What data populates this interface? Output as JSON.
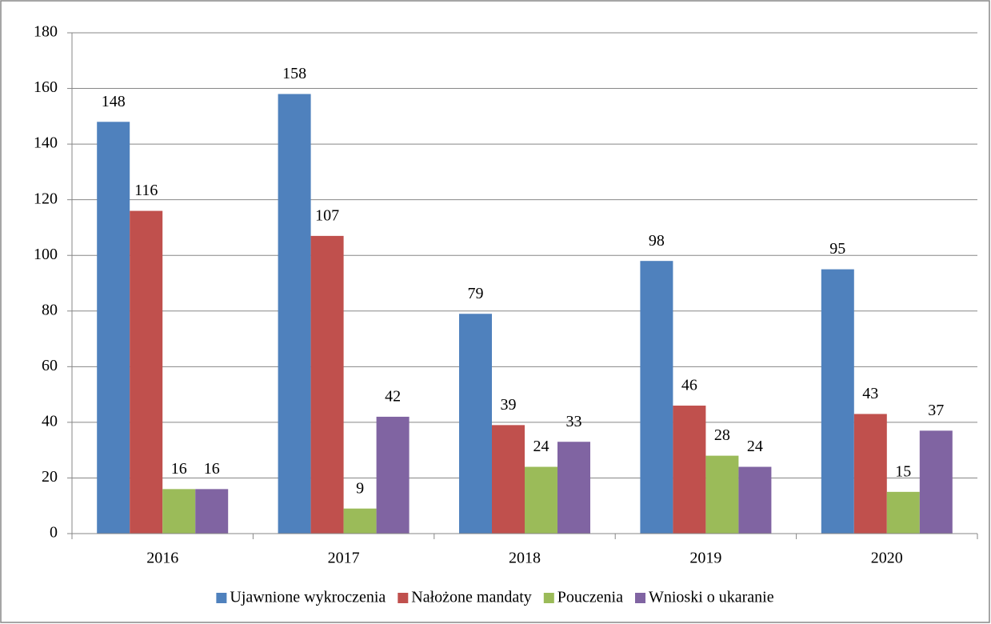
{
  "chart_data": {
    "type": "bar",
    "categories": [
      "2016",
      "2017",
      "2018",
      "2019",
      "2020"
    ],
    "series": [
      {
        "name": "Ujawnione wykroczenia",
        "color": "#4f81bd",
        "values": [
          148,
          158,
          79,
          98,
          95
        ]
      },
      {
        "name": "Nałożone mandaty",
        "color": "#c0504d",
        "values": [
          116,
          107,
          39,
          46,
          43
        ]
      },
      {
        "name": "Pouczenia",
        "color": "#9bbb59",
        "values": [
          16,
          9,
          24,
          28,
          15
        ]
      },
      {
        "name": "Wnioski o ukaranie",
        "color": "#8064a2",
        "values": [
          16,
          42,
          33,
          24,
          37
        ]
      }
    ],
    "ylim": [
      0,
      180
    ],
    "yticks": [
      0,
      20,
      40,
      60,
      80,
      100,
      120,
      140,
      160,
      180
    ],
    "grid": true,
    "legend": "bottom",
    "value_labels_shown": true
  }
}
